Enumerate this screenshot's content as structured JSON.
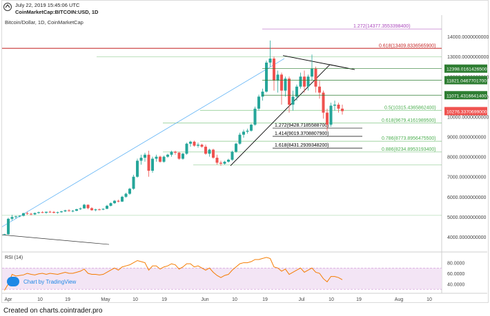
{
  "header": {
    "timestamp": "July 22, 2019 15:45:06 UTC",
    "pair": "CoinMarketCap:BITCOIN:USD, 1D"
  },
  "symbol_label": "Bitcoin/Dollar, 1D, CoinMarketCap",
  "footer": "Created on charts.cointrader.pro",
  "tv_badge": "Chart by TradingView",
  "rsi_label": "RSI (14)",
  "colors": {
    "up": "#26a69a",
    "down": "#ef5350",
    "trend": "#000000",
    "fib_green": "#4caf50",
    "fib_red": "#c62828",
    "fib_purple": "#ab47bc",
    "rsi_line": "#f57c00",
    "rsi_band": "#f3e5f5",
    "price_badge": "#ef5350",
    "level_badge": "#2e7d32"
  },
  "chart_data": [
    {
      "type": "candlestick",
      "title": "Bitcoin/Dollar, 1D, CoinMarketCap",
      "x_tick_labels": [
        "Apr",
        "10",
        "19",
        "May",
        "10",
        "19",
        "Jun",
        "10",
        "19",
        "Jul",
        "10",
        "19",
        "Aug",
        "10"
      ],
      "y_tick_labels": [
        "4000.0000000000",
        "5000.0000000000",
        "6000.0000000000",
        "7000.0000000000",
        "8000.0000000000",
        "9000.0000000000",
        "10000.0000000000",
        "11000.0000000000",
        "12000.0000000000",
        "13000.0000000000",
        "14000.0000000000"
      ],
      "ylim": [
        3450,
        14450
      ],
      "grid": false,
      "current_price": "10276.3370699000",
      "level_badges": [
        "12398.0161426500",
        "11821.0467701700",
        "11071.4316641400"
      ],
      "fib_levels": [
        {
          "label": "1.272(14377.3553398400)",
          "value": 14377.36,
          "color": "purple"
        },
        {
          "label": "0.618(13409.8336565900)",
          "value": 13409.83,
          "color": "red"
        },
        {
          "label": "0.5(10315.4365862400)",
          "value": 10315.44,
          "color": "green"
        },
        {
          "label": "0.618(9679.4161989500)",
          "value": 9679.42,
          "color": "green"
        },
        {
          "label": "1.272(9428.7185588700)",
          "value": 9428.72,
          "color": "black"
        },
        {
          "label": "1.414(9019.3708807900)",
          "value": 9019.37,
          "color": "black"
        },
        {
          "label": "0.786(8773.8956475500)",
          "value": 8773.9,
          "color": "green"
        },
        {
          "label": "1.618(8431.2939348200)",
          "value": 8431.29,
          "color": "black"
        },
        {
          "label": "0.886(8234.8953193400)",
          "value": 8234.9,
          "color": "green"
        }
      ],
      "candles": [
        [
          4100,
          4150,
          4080,
          4130
        ],
        [
          4130,
          4950,
          4100,
          4900
        ],
        [
          4900,
          5100,
          4820,
          4990
        ],
        [
          4990,
          5060,
          4900,
          5020
        ],
        [
          5020,
          5080,
          4980,
          5050
        ],
        [
          5050,
          5200,
          5020,
          5180
        ],
        [
          5180,
          5250,
          5100,
          5150
        ],
        [
          5150,
          5200,
          5080,
          5120
        ],
        [
          5120,
          5210,
          5090,
          5190
        ],
        [
          5190,
          5260,
          5150,
          5230
        ],
        [
          5230,
          5280,
          5180,
          5200
        ],
        [
          5200,
          5260,
          5150,
          5250
        ],
        [
          5250,
          5300,
          5200,
          5240
        ],
        [
          5240,
          5290,
          5170,
          5200
        ],
        [
          5200,
          5260,
          5150,
          5230
        ],
        [
          5230,
          5300,
          5200,
          5270
        ],
        [
          5270,
          5350,
          5240,
          5320
        ],
        [
          5320,
          5380,
          5260,
          5290
        ],
        [
          5290,
          5340,
          5230,
          5300
        ],
        [
          5300,
          5400,
          5280,
          5380
        ],
        [
          5380,
          5460,
          5340,
          5420
        ],
        [
          5420,
          5650,
          5400,
          5600
        ],
        [
          5600,
          5620,
          5380,
          5430
        ],
        [
          5430,
          5480,
          5300,
          5330
        ],
        [
          5330,
          5400,
          5280,
          5370
        ],
        [
          5370,
          5420,
          5320,
          5360
        ],
        [
          5360,
          5420,
          5330,
          5400
        ],
        [
          5400,
          5600,
          5380,
          5550
        ],
        [
          5550,
          5720,
          5520,
          5680
        ],
        [
          5680,
          5840,
          5640,
          5800
        ],
        [
          5800,
          5850,
          5720,
          5760
        ],
        [
          5760,
          6050,
          5740,
          6000
        ],
        [
          6000,
          6200,
          5950,
          6150
        ],
        [
          6150,
          6450,
          6100,
          6400
        ],
        [
          6400,
          7100,
          6350,
          7000
        ],
        [
          7000,
          7900,
          6950,
          7800
        ],
        [
          7800,
          8100,
          7600,
          7950
        ],
        [
          7950,
          8200,
          7750,
          8100
        ],
        [
          8100,
          8300,
          7000,
          7300
        ],
        [
          7300,
          8000,
          7200,
          7900
        ],
        [
          7900,
          8100,
          7750,
          8000
        ],
        [
          8000,
          8050,
          7700,
          7750
        ],
        [
          7750,
          8050,
          7700,
          8000
        ],
        [
          8000,
          8150,
          7950,
          8100
        ],
        [
          8100,
          8300,
          8000,
          8250
        ],
        [
          8250,
          8300,
          8100,
          8200
        ],
        [
          8200,
          8250,
          7850,
          7900
        ],
        [
          7900,
          8200,
          7850,
          8150
        ],
        [
          8150,
          8700,
          8100,
          8650
        ],
        [
          8650,
          8800,
          8500,
          8750
        ],
        [
          8750,
          8800,
          8500,
          8550
        ],
        [
          8550,
          8700,
          8450,
          8600
        ],
        [
          8600,
          8650,
          8450,
          8500
        ],
        [
          8500,
          8600,
          8100,
          8150
        ],
        [
          8150,
          8400,
          8000,
          8350
        ],
        [
          8350,
          8400,
          7900,
          7950
        ],
        [
          7950,
          8100,
          7600,
          7700
        ],
        [
          7700,
          7800,
          7550,
          7650
        ],
        [
          7650,
          7800,
          7600,
          7750
        ],
        [
          7750,
          7900,
          7700,
          7850
        ],
        [
          7850,
          8300,
          7800,
          8250
        ],
        [
          8250,
          8700,
          8200,
          8650
        ],
        [
          8650,
          9200,
          8600,
          9100
        ],
        [
          9100,
          9350,
          8950,
          9250
        ],
        [
          9250,
          9400,
          9150,
          9300
        ],
        [
          9300,
          9650,
          9250,
          9600
        ],
        [
          9600,
          10500,
          9550,
          10400
        ],
        [
          10400,
          11100,
          10300,
          11000
        ],
        [
          11000,
          11400,
          10800,
          11250
        ],
        [
          11250,
          12800,
          11200,
          12700
        ],
        [
          12700,
          13800,
          12500,
          12900
        ],
        [
          12900,
          13000,
          11300,
          11800
        ],
        [
          11800,
          12300,
          11200,
          12100
        ],
        [
          12100,
          12200,
          10600,
          11300
        ],
        [
          11300,
          12000,
          11000,
          11900
        ],
        [
          11900,
          12000,
          10200,
          10600
        ],
        [
          10600,
          11300,
          10300,
          11000
        ],
        [
          11000,
          11600,
          10800,
          11500
        ],
        [
          11500,
          12200,
          11400,
          12000
        ],
        [
          12000,
          12300,
          11200,
          11500
        ],
        [
          11500,
          12100,
          11300,
          12000
        ],
        [
          12000,
          13100,
          11800,
          12400
        ],
        [
          12400,
          12500,
          11200,
          11500
        ],
        [
          11500,
          11800,
          10900,
          11200
        ],
        [
          11200,
          11300,
          9900,
          10200
        ],
        [
          10200,
          10400,
          9300,
          9600
        ],
        [
          9600,
          10700,
          9500,
          10550
        ],
        [
          10550,
          10800,
          10300,
          10600
        ],
        [
          10600,
          10700,
          10200,
          10400
        ],
        [
          10400,
          10600,
          10100,
          10276
        ]
      ]
    },
    {
      "type": "line",
      "title": "RSI (14)",
      "y_tick_labels": [
        "40.0000",
        "60.0000",
        "80.0000"
      ],
      "ylim": [
        25,
        95
      ],
      "band": [
        30,
        70
      ],
      "values": [
        28,
        40,
        58,
        55,
        56,
        57,
        60,
        58,
        57,
        59,
        60,
        58,
        60,
        59,
        58,
        60,
        62,
        60,
        60,
        62,
        64,
        68,
        60,
        58,
        58,
        57,
        58,
        62,
        66,
        70,
        66,
        72,
        74,
        76,
        80,
        84,
        82,
        80,
        66,
        74,
        74,
        68,
        72,
        74,
        78,
        76,
        68,
        72,
        78,
        78,
        72,
        74,
        70,
        66,
        70,
        62,
        56,
        52,
        56,
        58,
        66,
        72,
        78,
        80,
        80,
        82,
        86,
        86,
        88,
        90,
        88,
        72,
        70,
        64,
        68,
        58,
        62,
        66,
        70,
        62,
        66,
        70,
        62,
        60,
        50,
        44,
        54,
        54,
        52,
        48
      ]
    }
  ]
}
